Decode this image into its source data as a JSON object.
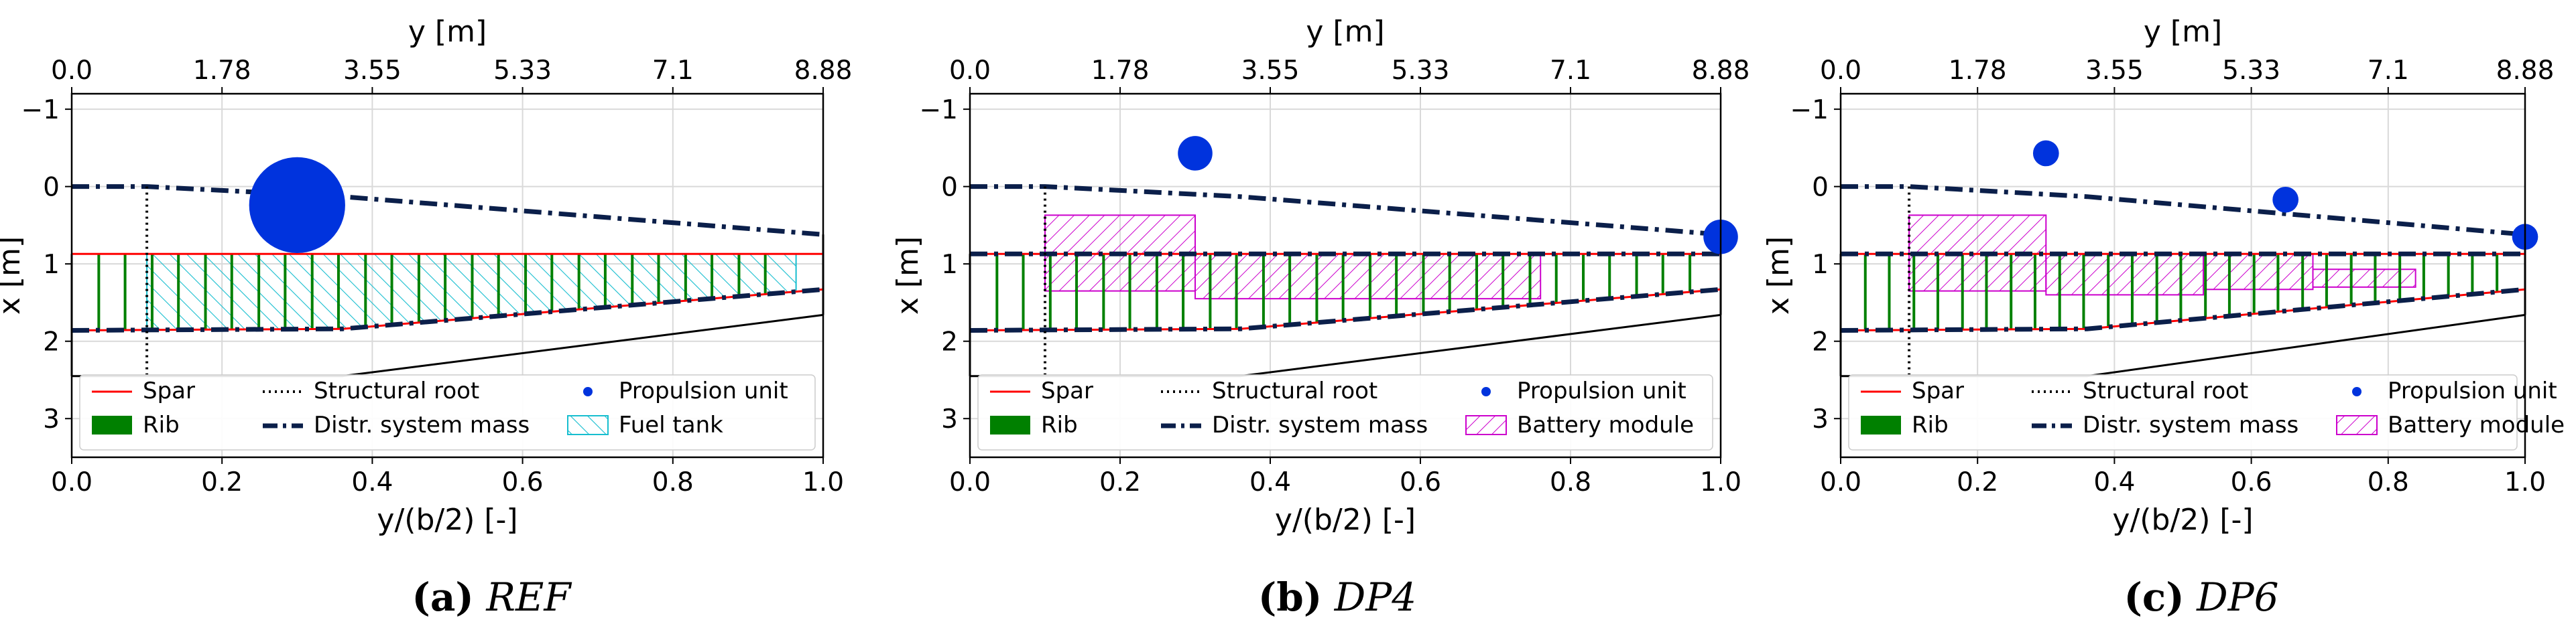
{
  "colors": {
    "spar": "#ff0000",
    "rib": "#008000",
    "propulsion": "#0033dd",
    "fuel": "#17becf",
    "battery": "#cc00cc",
    "distr": "#0b1f4a",
    "grid": "#d9d9d9"
  },
  "chart_data": [
    {
      "type": "scatter",
      "xlabel": "y/(b/2) [-]",
      "ylabel": "x [m]",
      "top_xlabel": "y [m]",
      "bottom_ticks": [
        "0.0",
        "0.2",
        "0.4",
        "0.6",
        "0.8",
        "1.0"
      ],
      "top_ticks": [
        "0.0",
        "1.78",
        "3.55",
        "5.33",
        "7.1",
        "8.88"
      ],
      "y_ticks": [
        "−1",
        "0",
        "1",
        "2",
        "3"
      ],
      "xlim": [
        0,
        1.0
      ],
      "ylim": [
        3.5,
        -1.2
      ],
      "planform_le": [
        [
          0,
          0
        ],
        [
          0.1,
          0
        ],
        [
          0.36,
          0.13
        ],
        [
          1.0,
          0.62
        ]
      ],
      "planform_te": [
        [
          0,
          2.45
        ],
        [
          0.36,
          2.45
        ],
        [
          1.0,
          1.66
        ]
      ],
      "spar_front": [
        [
          0,
          0.87
        ],
        [
          1.0,
          0.87
        ]
      ],
      "spar_rear": [
        [
          0,
          1.86
        ],
        [
          0.36,
          1.84
        ],
        [
          1.0,
          1.33
        ]
      ],
      "structural_root": 0.1,
      "distr_mass_front": [
        [
          0,
          0
        ],
        [
          0.1,
          0
        ],
        [
          0.36,
          0.13
        ],
        [
          1.0,
          0.62
        ]
      ],
      "distr_mass_rear": [
        [
          0,
          1.86
        ],
        [
          0.36,
          1.84
        ],
        [
          1.0,
          1.33
        ]
      ],
      "rib_positions": [
        0.036,
        0.071,
        0.107,
        0.142,
        0.178,
        0.213,
        0.249,
        0.284,
        0.32,
        0.355,
        0.391,
        0.426,
        0.462,
        0.497,
        0.533,
        0.568,
        0.604,
        0.639,
        0.675,
        0.71,
        0.746,
        0.781,
        0.817,
        0.852,
        0.888,
        0.923
      ],
      "propulsion_units": [
        {
          "y": 0.3,
          "x": 0.24,
          "size": 1.0
        }
      ],
      "fuel_tank": {
        "front": [
          [
            0.1,
            0.87
          ],
          [
            0.964,
            0.87
          ]
        ],
        "rear": [
          [
            0.1,
            1.85
          ],
          [
            0.36,
            1.84
          ],
          [
            0.964,
            1.36
          ]
        ]
      },
      "battery_modules": [],
      "legend": [
        "Spar",
        "Structural root",
        "Propulsion unit",
        "Rib",
        "Distr. system mass",
        "Fuel tank"
      ],
      "caption": {
        "label": "(a)",
        "name": "REF"
      }
    },
    {
      "type": "scatter",
      "xlabel": "y/(b/2) [-]",
      "ylabel": "x [m]",
      "top_xlabel": "y [m]",
      "bottom_ticks": [
        "0.0",
        "0.2",
        "0.4",
        "0.6",
        "0.8",
        "1.0"
      ],
      "top_ticks": [
        "0.0",
        "1.78",
        "3.55",
        "5.33",
        "7.1",
        "8.88"
      ],
      "y_ticks": [
        "−1",
        "0",
        "1",
        "2",
        "3"
      ],
      "xlim": [
        0,
        1.0
      ],
      "ylim": [
        3.5,
        -1.2
      ],
      "planform_le": [
        [
          0,
          0
        ],
        [
          0.1,
          0
        ],
        [
          0.36,
          0.13
        ],
        [
          1.0,
          0.62
        ]
      ],
      "planform_te": [
        [
          0,
          2.45
        ],
        [
          0.36,
          2.45
        ],
        [
          1.0,
          1.66
        ]
      ],
      "spar_front": [
        [
          0,
          0.87
        ],
        [
          1.0,
          0.87
        ]
      ],
      "spar_rear": [
        [
          0,
          1.86
        ],
        [
          0.36,
          1.84
        ],
        [
          1.0,
          1.33
        ]
      ],
      "structural_root": 0.1,
      "distr_mass_front": [
        [
          0,
          0
        ],
        [
          0.1,
          0
        ],
        [
          0.36,
          0.13
        ],
        [
          1.0,
          0.62
        ],
        [
          0,
          0.87
        ],
        [
          1.0,
          0.87
        ]
      ],
      "distr_mass_rear": [
        [
          0,
          1.86
        ],
        [
          0.36,
          1.84
        ],
        [
          1.0,
          1.33
        ]
      ],
      "rib_positions": [
        0.036,
        0.071,
        0.107,
        0.142,
        0.178,
        0.213,
        0.249,
        0.284,
        0.32,
        0.355,
        0.391,
        0.426,
        0.462,
        0.497,
        0.533,
        0.568,
        0.604,
        0.639,
        0.675,
        0.71,
        0.746,
        0.781,
        0.817,
        0.852,
        0.888,
        0.923,
        0.959
      ],
      "propulsion_units": [
        {
          "y": 0.3,
          "x": -0.43,
          "size": 0.36
        },
        {
          "y": 1.0,
          "x": 0.65,
          "size": 0.36
        }
      ],
      "fuel_tank": null,
      "battery_modules": [
        {
          "y0": 0.1,
          "y1": 0.3,
          "x0": 0.37,
          "x1": 1.35
        },
        {
          "y0": 0.3,
          "y1": 0.76,
          "x0": 0.87,
          "x1": 1.45
        }
      ],
      "legend": [
        "Spar",
        "Structural root",
        "Propulsion unit",
        "Rib",
        "Distr. system mass",
        "Battery module"
      ],
      "caption": {
        "label": "(b)",
        "name": "DP4"
      }
    },
    {
      "type": "scatter",
      "xlabel": "y/(b/2) [-]",
      "ylabel": "x [m]",
      "top_xlabel": "y [m]",
      "bottom_ticks": [
        "0.0",
        "0.2",
        "0.4",
        "0.6",
        "0.8",
        "1.0"
      ],
      "top_ticks": [
        "0.0",
        "1.78",
        "3.55",
        "5.33",
        "7.1",
        "8.88"
      ],
      "y_ticks": [
        "−1",
        "0",
        "1",
        "2",
        "3"
      ],
      "xlim": [
        0,
        1.0
      ],
      "ylim": [
        3.5,
        -1.2
      ],
      "planform_le": [
        [
          0,
          0
        ],
        [
          0.1,
          0
        ],
        [
          0.36,
          0.13
        ],
        [
          1.0,
          0.62
        ]
      ],
      "planform_te": [
        [
          0,
          2.45
        ],
        [
          0.36,
          2.45
        ],
        [
          1.0,
          1.66
        ]
      ],
      "spar_front": [
        [
          0,
          0.87
        ],
        [
          1.0,
          0.87
        ]
      ],
      "spar_rear": [
        [
          0,
          1.86
        ],
        [
          0.36,
          1.84
        ],
        [
          1.0,
          1.33
        ]
      ],
      "structural_root": 0.1,
      "distr_mass_front": [
        [
          0,
          0
        ],
        [
          0.1,
          0
        ],
        [
          0.36,
          0.13
        ],
        [
          1.0,
          0.62
        ],
        [
          0,
          0.87
        ],
        [
          1.0,
          0.87
        ]
      ],
      "distr_mass_rear": [
        [
          0,
          1.86
        ],
        [
          0.36,
          1.84
        ],
        [
          1.0,
          1.33
        ]
      ],
      "rib_positions": [
        0.036,
        0.071,
        0.107,
        0.142,
        0.178,
        0.213,
        0.249,
        0.284,
        0.32,
        0.355,
        0.391,
        0.426,
        0.462,
        0.497,
        0.533,
        0.568,
        0.604,
        0.639,
        0.675,
        0.71,
        0.746,
        0.781,
        0.817,
        0.852,
        0.888,
        0.923,
        0.959
      ],
      "propulsion_units": [
        {
          "y": 0.3,
          "x": -0.43,
          "size": 0.27
        },
        {
          "y": 0.65,
          "x": 0.17,
          "size": 0.27
        },
        {
          "y": 1.0,
          "x": 0.65,
          "size": 0.27
        }
      ],
      "fuel_tank": null,
      "battery_modules": [
        {
          "y0": 0.1,
          "y1": 0.3,
          "x0": 0.37,
          "x1": 1.35
        },
        {
          "y0": 0.3,
          "y1": 0.53,
          "x0": 0.87,
          "x1": 1.4
        },
        {
          "y0": 0.53,
          "y1": 0.69,
          "x0": 0.87,
          "x1": 1.33
        },
        {
          "y0": 0.69,
          "y1": 0.84,
          "x0": 1.07,
          "x1": 1.3
        }
      ],
      "legend": [
        "Spar",
        "Structural root",
        "Propulsion unit",
        "Rib",
        "Distr. system mass",
        "Battery module"
      ],
      "caption": {
        "label": "(c)",
        "name": "DP6"
      }
    }
  ]
}
